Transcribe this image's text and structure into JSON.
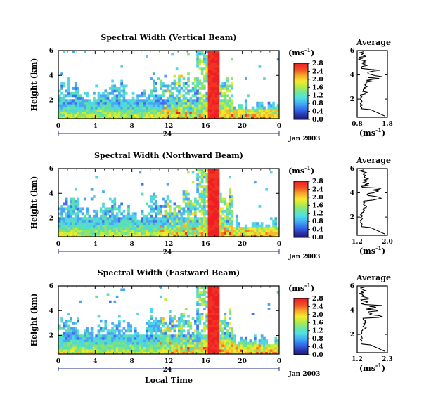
{
  "chart_data": [
    {
      "type": "heatmap",
      "title": "Spectral Width (Vertical Beam)",
      "ylabel": "Height (km)",
      "xlabel": "",
      "x_ticks": [
        "0",
        "4",
        "8",
        "12",
        "16",
        "20",
        "0"
      ],
      "y_ticks": [
        "2",
        "4",
        "6"
      ],
      "xlim": [
        0,
        24
      ],
      "ylim": [
        0.5,
        6
      ],
      "day_marker": "24",
      "date_label": "Jan 2003",
      "colorbar": {
        "unit": "(ms",
        "unit_exp": "-1",
        "unit_close": ")",
        "ticks": [
          "0.0",
          "0.4",
          "0.8",
          "1.2",
          "1.6",
          "2.0",
          "2.4",
          "2.8"
        ]
      },
      "profile": {
        "title": "Average",
        "xlabel": "(ms",
        "xlabel_exp": "-1",
        "xlabel_close": ")",
        "x_ticks": [
          "0.8",
          "1.8"
        ],
        "y_ticks": [
          "2",
          "4",
          "6"
        ],
        "xlim": [
          0.8,
          1.8
        ],
        "ylim": [
          0.5,
          6
        ]
      }
    },
    {
      "type": "heatmap",
      "title": "Spectral Width (Northward Beam)",
      "ylabel": "Height (km)",
      "xlabel": "",
      "x_ticks": [
        "0",
        "4",
        "8",
        "12",
        "16",
        "20",
        "0"
      ],
      "y_ticks": [
        "2",
        "4",
        "6"
      ],
      "xlim": [
        0,
        24
      ],
      "ylim": [
        0.5,
        6
      ],
      "day_marker": "24",
      "date_label": "Jan 2003",
      "colorbar": {
        "unit": "(ms",
        "unit_exp": "-1",
        "unit_close": ")",
        "ticks": [
          "0.0",
          "0.4",
          "0.8",
          "1.2",
          "1.6",
          "2.0",
          "2.4",
          "2.8"
        ]
      },
      "profile": {
        "title": "Average",
        "xlabel": "(ms",
        "xlabel_exp": "-1",
        "xlabel_close": ")",
        "x_ticks": [
          "1.2",
          "2.0"
        ],
        "y_ticks": [
          "2",
          "4",
          "6"
        ],
        "xlim": [
          1.2,
          2.0
        ],
        "ylim": [
          0.5,
          6
        ]
      }
    },
    {
      "type": "heatmap",
      "title": "Spectral Width (Eastward Beam)",
      "ylabel": "Height (km)",
      "xlabel": "Local Time",
      "x_ticks": [
        "0",
        "4",
        "8",
        "12",
        "16",
        "20",
        "0"
      ],
      "y_ticks": [
        "2",
        "4",
        "6"
      ],
      "xlim": [
        0,
        24
      ],
      "ylim": [
        0.5,
        6
      ],
      "day_marker": "24",
      "date_label": "Jan 2003",
      "colorbar": {
        "unit": "(ms",
        "unit_exp": "-1",
        "unit_close": ")",
        "ticks": [
          "0.0",
          "0.4",
          "0.8",
          "1.2",
          "1.6",
          "2.0",
          "2.4",
          "2.8"
        ]
      },
      "profile": {
        "title": "Average",
        "xlabel": "(ms",
        "xlabel_exp": "-1",
        "xlabel_close": ")",
        "x_ticks": [
          "1.2",
          "2.3"
        ],
        "y_ticks": [
          "2",
          "4",
          "6"
        ],
        "xlim": [
          1.2,
          2.3
        ],
        "ylim": [
          0.5,
          6
        ]
      }
    }
  ],
  "colormap": [
    "#1a1a6e",
    "#2a3ec8",
    "#3f6ef0",
    "#4aa6f2",
    "#4fd6e6",
    "#5de0b0",
    "#8ee46a",
    "#c8ec3a",
    "#f6e82c",
    "#f8b82a",
    "#f47a26",
    "#f03424",
    "#ee1e22"
  ]
}
